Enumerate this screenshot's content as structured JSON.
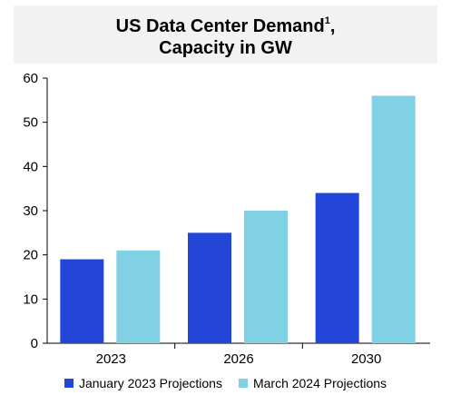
{
  "chart_data": {
    "type": "bar",
    "title_line1": "US Data Center Demand",
    "title_superscript": "1",
    "title_suffix": ",",
    "title_line2": "Capacity in GW",
    "categories": [
      "2023",
      "2026",
      "2030"
    ],
    "series": [
      {
        "name": "January 2023 Projections",
        "color": "#2346d8",
        "values": [
          19,
          25,
          34
        ]
      },
      {
        "name": "March 2024 Projections",
        "color": "#7fd1e3",
        "values": [
          21,
          30,
          56
        ]
      }
    ],
    "ylim": [
      0,
      60
    ],
    "yticks": [
      0,
      10,
      20,
      30,
      40,
      50,
      60
    ],
    "grid": false,
    "legend_position": "bottom"
  }
}
